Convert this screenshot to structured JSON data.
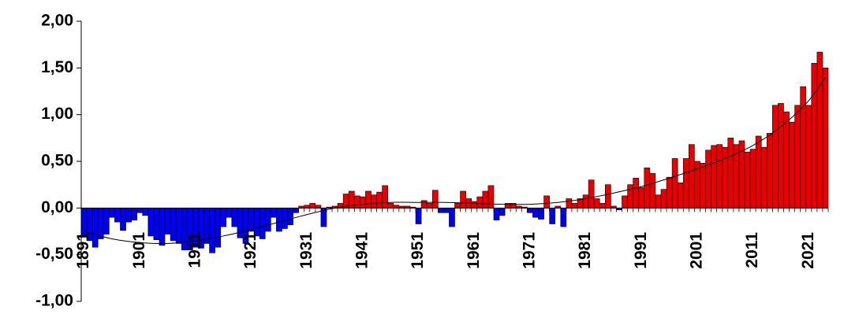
{
  "chart_data": {
    "type": "bar",
    "categories": [
      "1891",
      null,
      null,
      null,
      null,
      null,
      null,
      null,
      null,
      null,
      "1901",
      null,
      null,
      null,
      null,
      null,
      null,
      null,
      null,
      null,
      "1911",
      null,
      null,
      null,
      null,
      null,
      null,
      null,
      null,
      null,
      "1921",
      null,
      null,
      null,
      null,
      null,
      null,
      null,
      null,
      null,
      "1931",
      null,
      null,
      null,
      null,
      null,
      null,
      null,
      null,
      null,
      "1941",
      null,
      null,
      null,
      null,
      null,
      null,
      null,
      null,
      null,
      "1951",
      null,
      null,
      null,
      null,
      null,
      null,
      null,
      null,
      null,
      "1961",
      null,
      null,
      null,
      null,
      null,
      null,
      null,
      null,
      null,
      "1971",
      null,
      null,
      null,
      null,
      null,
      null,
      null,
      null,
      null,
      "1981",
      null,
      null,
      null,
      null,
      null,
      null,
      null,
      null,
      null,
      "1991",
      null,
      null,
      null,
      null,
      null,
      null,
      null,
      null,
      null,
      "2001",
      null,
      null,
      null,
      null,
      null,
      null,
      null,
      null,
      null,
      "2011",
      null,
      null,
      null,
      null,
      null,
      null,
      null,
      null,
      null,
      "2021",
      null,
      null,
      null
    ],
    "values": [
      -0.3,
      -0.35,
      -0.42,
      -0.33,
      -0.28,
      -0.1,
      -0.15,
      -0.24,
      -0.15,
      -0.13,
      -0.05,
      -0.08,
      -0.3,
      -0.34,
      -0.4,
      -0.28,
      -0.35,
      -0.38,
      -0.45,
      -0.45,
      -0.42,
      -0.43,
      -0.38,
      -0.48,
      -0.42,
      -0.2,
      -0.1,
      -0.2,
      -0.32,
      -0.38,
      -0.25,
      -0.3,
      -0.33,
      -0.25,
      -0.1,
      -0.25,
      -0.22,
      -0.18,
      -0.05,
      0.02,
      0.03,
      0.05,
      0.03,
      -0.2,
      0.01,
      0.02,
      0.05,
      0.15,
      0.18,
      0.13,
      0.12,
      0.18,
      0.14,
      0.17,
      0.24,
      0.05,
      0.03,
      0.02,
      0.02,
      0.01,
      -0.17,
      0.08,
      0.05,
      0.19,
      -0.05,
      -0.05,
      -0.2,
      0.05,
      0.18,
      0.1,
      0.07,
      0.12,
      0.18,
      0.24,
      -0.13,
      -0.08,
      0.05,
      0.05,
      0.02,
      0.01,
      -0.05,
      -0.1,
      -0.12,
      0.13,
      -0.17,
      0.02,
      -0.2,
      0.1,
      0.05,
      0.1,
      0.14,
      0.3,
      0.1,
      0.05,
      0.25,
      0.02,
      -0.02,
      0.13,
      0.25,
      0.32,
      0.22,
      0.43,
      0.37,
      0.14,
      0.2,
      0.33,
      0.53,
      0.27,
      0.53,
      0.68,
      0.5,
      0.48,
      0.62,
      0.67,
      0.68,
      0.65,
      0.75,
      0.68,
      0.72,
      0.6,
      0.63,
      0.77,
      0.65,
      0.8,
      1.1,
      1.12,
      1.03,
      0.92,
      1.1,
      1.3,
      1.1,
      1.55,
      1.67,
      1.5
    ],
    "positive_color": "#e80000",
    "negative_color": "#0000f0",
    "trend": {
      "color": "#000000",
      "x": [
        1891,
        1896,
        1901,
        1906,
        1911,
        1916,
        1921,
        1926,
        1931,
        1936,
        1941,
        1946,
        1951,
        1956,
        1961,
        1966,
        1971,
        1976,
        1981,
        1986,
        1991,
        1996,
        2001,
        2006,
        2011,
        2016,
        2021,
        2024
      ],
      "values": [
        -0.25,
        -0.33,
        -0.37,
        -0.38,
        -0.35,
        -0.3,
        -0.23,
        -0.15,
        -0.07,
        0.0,
        0.04,
        0.06,
        0.06,
        0.06,
        0.05,
        0.04,
        0.04,
        0.06,
        0.1,
        0.16,
        0.23,
        0.32,
        0.42,
        0.53,
        0.67,
        0.87,
        1.15,
        1.4
      ]
    },
    "ylim": [
      -1,
      2
    ],
    "yticks": [
      {
        "value": -1,
        "label": "-1,00"
      },
      {
        "value": -0.5,
        "label": "-0,50"
      },
      {
        "value": 0,
        "label": "0,00"
      },
      {
        "value": 0.5,
        "label": "0,50"
      },
      {
        "value": 1,
        "label": "1,00"
      },
      {
        "value": 1.5,
        "label": "1,50"
      },
      {
        "value": 2,
        "label": "2,00"
      }
    ]
  }
}
